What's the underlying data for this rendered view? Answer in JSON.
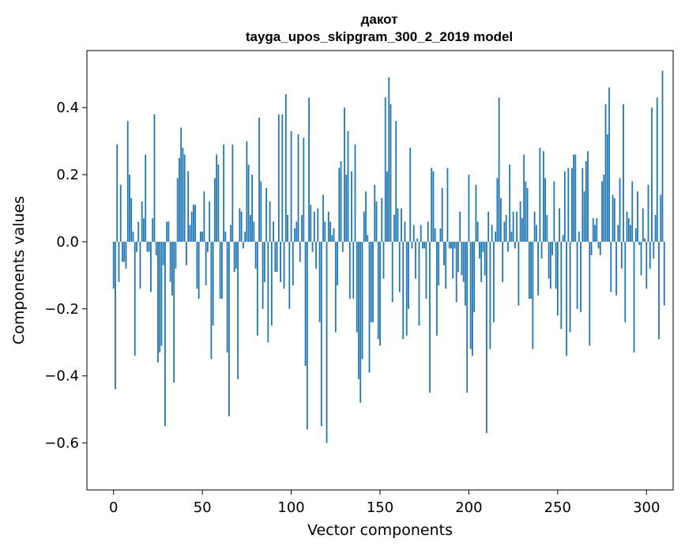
{
  "chart_data": {
    "type": "bar",
    "title": "дакот",
    "subtitle": "tayga_upos_skipgram_300_2_2019 model",
    "xlabel": "Vector components",
    "ylabel": "Components values",
    "xlim": [
      -15,
      315
    ],
    "ylim": [
      -0.74,
      0.57
    ],
    "xticks": [
      0,
      50,
      100,
      150,
      200,
      250,
      300
    ],
    "yticks": [
      -0.6,
      -0.4,
      -0.2,
      0.0,
      0.2,
      0.4
    ],
    "ytick_labels": [
      "−0.6",
      "−0.4",
      "−0.2",
      "0.0",
      "0.2",
      "0.4"
    ],
    "bar_color": "#1f77b4",
    "values": [
      -0.14,
      -0.44,
      0.29,
      -0.12,
      0.17,
      -0.06,
      -0.06,
      -0.08,
      0.36,
      0.2,
      0.13,
      0.03,
      -0.34,
      -0.03,
      0.06,
      -0.14,
      0.12,
      0.07,
      0.26,
      -0.03,
      -0.03,
      -0.15,
      0.07,
      0.38,
      -0.04,
      -0.36,
      -0.33,
      -0.31,
      -0.07,
      -0.55,
      0.06,
      0.06,
      -0.12,
      -0.16,
      -0.42,
      -0.08,
      0.19,
      0.25,
      0.34,
      0.28,
      0.26,
      -0.07,
      0.21,
      0.05,
      0.09,
      0.11,
      0.11,
      -0.14,
      -0.17,
      0.03,
      0.03,
      0.15,
      -0.13,
      -0.03,
      0.12,
      -0.35,
      -0.25,
      0.19,
      0.26,
      0.23,
      -0.17,
      -0.17,
      0.29,
      0.03,
      -0.33,
      -0.52,
      0.05,
      0.29,
      -0.09,
      -0.08,
      -0.41,
      0.1,
      0.09,
      -0.02,
      0.03,
      0.3,
      0.23,
      0.08,
      0.2,
      0.06,
      -0.08,
      -0.28,
      0.37,
      0.18,
      -0.2,
      -0.12,
      0.16,
      -0.3,
      0.12,
      -0.25,
      0.06,
      -0.09,
      -0.09,
      0.38,
      -0.12,
      0.38,
      -0.14,
      0.44,
      0.08,
      -0.2,
      0.33,
      -0.13,
      0.04,
      0.06,
      0.32,
      -0.06,
      0.08,
      0.31,
      -0.37,
      -0.56,
      0.43,
      0.11,
      -0.03,
      0.09,
      -0.08,
      0.1,
      -0.24,
      -0.55,
      0.14,
      0.06,
      -0.6,
      0.09,
      0.06,
      0.02,
      0.04,
      -0.27,
      -0.13,
      0.22,
      0.24,
      -0.03,
      0.4,
      0.2,
      0.33,
      -0.17,
      0.21,
      -0.17,
      0.29,
      -0.27,
      -0.41,
      -0.48,
      -0.35,
      0.09,
      0.15,
      0.02,
      -0.39,
      -0.24,
      -0.24,
      0.17,
      0.12,
      -0.29,
      -0.31,
      0.13,
      -0.11,
      0.43,
      0.21,
      0.49,
      0.41,
      -0.18,
      0.08,
      0.36,
      0.1,
      -0.15,
      0.1,
      -0.29,
      0.06,
      -0.28,
      -0.2,
      0.28,
      -0.02,
      0.05,
      -0.11,
      0.01,
      -0.25,
      0.05,
      -0.02,
      -0.02,
      -0.17,
      0.06,
      -0.45,
      0.22,
      0.21,
      0.04,
      -0.28,
      -0.13,
      0.04,
      0.16,
      -0.07,
      -0.14,
      0.22,
      -0.02,
      -0.02,
      -0.11,
      -0.02,
      -0.18,
      -0.09,
      0.09,
      -0.1,
      -0.12,
      -0.19,
      -0.45,
      0.2,
      -0.32,
      -0.34,
      -0.21,
      0.17,
      0.06,
      -0.05,
      -0.12,
      -0.03,
      -0.1,
      -0.57,
      0.09,
      -0.32,
      0.05,
      -0.24,
      0.03,
      0.19,
      0.43,
      0.13,
      -0.12,
      0.06,
      0.08,
      -0.03,
      0.23,
      0.03,
      0.09,
      -0.02,
      0.09,
      -0.19,
      0.12,
      0.07,
      0.26,
      0.18,
      0.16,
      -0.17,
      -0.17,
      -0.32,
      0.09,
      0.05,
      -0.16,
      0.28,
      -0.05,
      0.27,
      0.19,
      0.08,
      -0.11,
      -0.14,
      -0.04,
      0.18,
      -0.14,
      -0.22,
      0.1,
      -0.26,
      0.02,
      0.21,
      -0.34,
      0.22,
      -0.27,
      0.22,
      0.26,
      0.26,
      -0.2,
      0.03,
      -0.21,
      0.22,
      0.15,
      0.24,
      0.27,
      -0.31,
      -0.04,
      0.07,
      0.05,
      0.07,
      -0.02,
      -0.04,
      0.18,
      0.2,
      0.41,
      0.32,
      0.46,
      -0.15,
      0.14,
      0.13,
      -0.16,
      0.05,
      0.19,
      -0.08,
      0.41,
      -0.24,
      0.09,
      0.07,
      0.05,
      0.18,
      -0.33,
      0.04,
      0.15,
      -0.01,
      -0.1,
      0.1,
      0.01,
      -0.14,
      0.17,
      -0.08,
      0.4,
      -0.05,
      0.08,
      0.43,
      -0.29,
      0.14,
      0.51,
      -0.19
    ],
    "grid": false
  }
}
